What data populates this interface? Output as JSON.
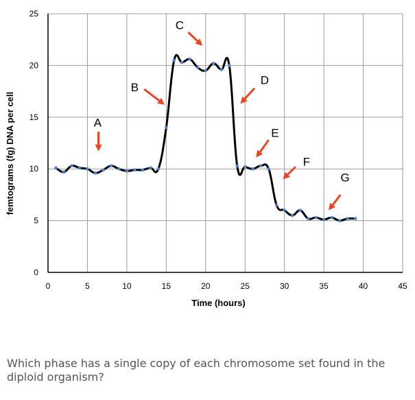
{
  "question": "Which phase has a single copy of each chromosome set found in the diploid organism?",
  "chart_data": {
    "type": "line",
    "xlabel": "Time (hours)",
    "ylabel": "femtograms (fg) DNA per cell",
    "xlim": [
      0,
      45
    ],
    "ylim": [
      0,
      25
    ],
    "xticks": [
      0,
      5,
      10,
      15,
      20,
      25,
      30,
      35,
      40,
      45
    ],
    "yticks": [
      0,
      5,
      10,
      15,
      20,
      25
    ],
    "grid": true,
    "line_color": "#000000",
    "marker_color": "#4a7fd4",
    "arrow_color": "#ee4422",
    "series": [
      {
        "x": [
          1,
          2,
          3,
          4,
          5,
          6,
          7,
          8,
          9,
          10,
          11,
          12,
          13,
          14,
          15,
          16,
          17,
          18,
          19,
          20,
          21,
          22,
          23,
          24,
          25,
          26,
          27,
          28,
          29,
          30,
          31,
          32,
          33,
          34,
          35,
          36,
          37,
          38,
          39
        ],
        "y": [
          10.1,
          9.7,
          10.3,
          10.1,
          10.0,
          9.6,
          9.9,
          10.3,
          10.0,
          9.8,
          9.9,
          9.9,
          10.1,
          10.0,
          14.0,
          20.5,
          20.3,
          20.6,
          19.8,
          19.5,
          20.2,
          19.6,
          20.0,
          10.3,
          10.2,
          10.0,
          10.3,
          10.0,
          6.5,
          6.0,
          5.5,
          6.0,
          5.2,
          5.3,
          5.1,
          5.3,
          5.0,
          5.2,
          5.2
        ]
      }
    ],
    "annotations": [
      {
        "label": "A",
        "x": 6.3,
        "y": 14.5
      },
      {
        "label": "B",
        "x": 11.0,
        "y": 17.9
      },
      {
        "label": "C",
        "x": 16.7,
        "y": 23.9
      },
      {
        "label": "D",
        "x": 27.5,
        "y": 18.6
      },
      {
        "label": "E",
        "x": 28.8,
        "y": 13.5
      },
      {
        "label": "F",
        "x": 32.8,
        "y": 10.7
      },
      {
        "label": "G",
        "x": 37.7,
        "y": 9.2
      }
    ],
    "arrows": [
      {
        "from": [
          6.4,
          13.6
        ],
        "to": [
          6.4,
          11.7
        ]
      },
      {
        "from": [
          12.2,
          17.7
        ],
        "to": [
          14.8,
          16.2
        ]
      },
      {
        "from": [
          17.8,
          23.2
        ],
        "to": [
          19.6,
          21.9
        ]
      },
      {
        "from": [
          26.2,
          17.8
        ],
        "to": [
          24.4,
          16.3
        ]
      },
      {
        "from": [
          28.0,
          12.8
        ],
        "to": [
          26.4,
          11.1
        ]
      },
      {
        "from": [
          31.4,
          10.2
        ],
        "to": [
          29.8,
          9.0
        ]
      },
      {
        "from": [
          37.1,
          7.5
        ],
        "to": [
          35.6,
          6.0
        ]
      }
    ]
  }
}
